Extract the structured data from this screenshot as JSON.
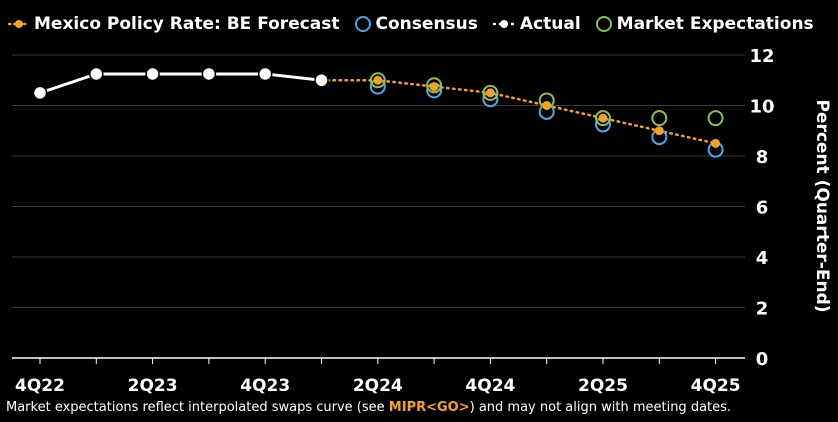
{
  "legend": {
    "forecast": "Mexico Policy Rate: BE Forecast",
    "consensus": "Consensus",
    "actual": "Actual",
    "market": "Market Expectations"
  },
  "footer": {
    "prefix": "Market expectations reflect interpolated swaps curve (see ",
    "code": "MIPR<GO>",
    "suffix": ") and may not align with meeting dates."
  },
  "colors": {
    "forecast": "#f7a21b",
    "consensus": "#4aa8ea",
    "actual": "#ffffff",
    "market": "#8bc34a",
    "grid": "#3a3a3a",
    "background": "#000000"
  },
  "chart_data": {
    "type": "line",
    "title": "Mexico Policy Rate: BE Forecast",
    "ylabel": "Percent (Quarter-End)",
    "xlabel": "",
    "ylim": [
      0,
      12
    ],
    "yticks": [
      0,
      2,
      4,
      6,
      8,
      10,
      12
    ],
    "categories": [
      "4Q22",
      "1Q23",
      "2Q23",
      "3Q23",
      "4Q23",
      "1Q24",
      "2Q24",
      "3Q24",
      "4Q24",
      "1Q25",
      "2Q25",
      "3Q25",
      "4Q25"
    ],
    "xtick_labels": [
      "4Q22",
      "2Q23",
      "4Q23",
      "2Q24",
      "4Q24",
      "2Q25",
      "4Q25"
    ],
    "series": [
      {
        "name": "Actual",
        "style": "solid-line-white-dots",
        "values": [
          10.5,
          11.25,
          11.25,
          11.25,
          11.25,
          11.0,
          null,
          null,
          null,
          null,
          null,
          null,
          null
        ]
      },
      {
        "name": "Mexico Policy Rate: BE Forecast",
        "style": "dotted-line-orange-dots",
        "values": [
          null,
          null,
          null,
          null,
          null,
          11.0,
          11.0,
          10.75,
          10.5,
          10.0,
          9.5,
          9.0,
          8.5
        ]
      },
      {
        "name": "Consensus",
        "style": "blue-rings",
        "values": [
          null,
          null,
          null,
          null,
          null,
          null,
          10.75,
          10.6,
          10.25,
          9.75,
          9.25,
          8.75,
          8.25
        ]
      },
      {
        "name": "Market Expectations",
        "style": "green-rings",
        "values": [
          null,
          null,
          null,
          null,
          null,
          null,
          11.0,
          10.8,
          10.5,
          10.2,
          9.5,
          9.5,
          9.5
        ]
      }
    ]
  }
}
